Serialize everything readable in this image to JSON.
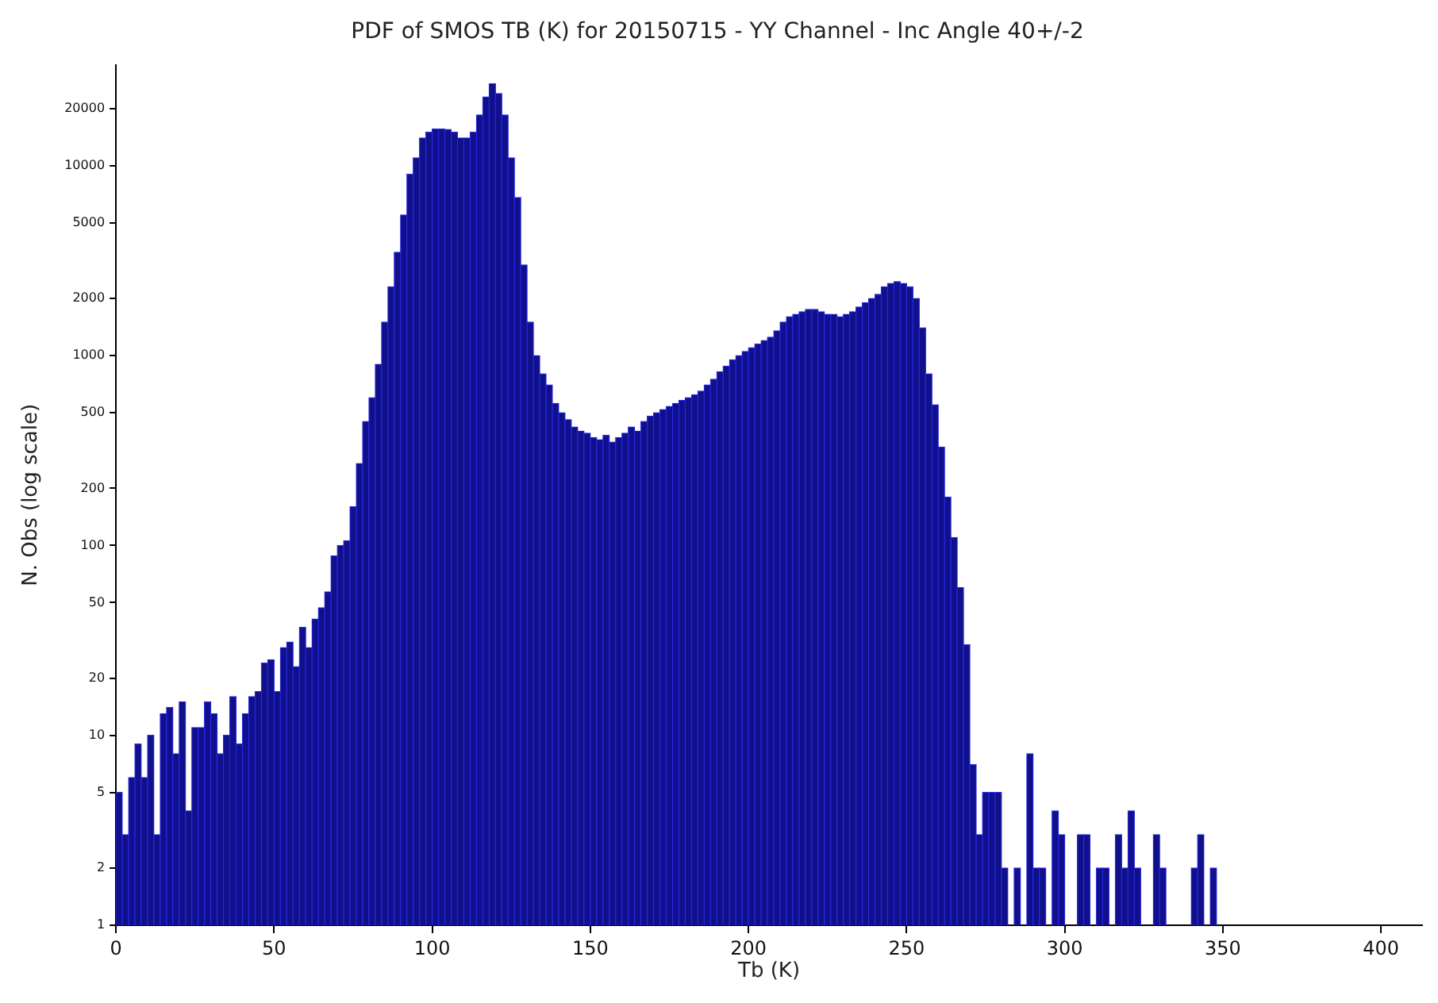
{
  "chart_data": {
    "type": "histogram",
    "title": "PDF of SMOS TB (K) for 20150715 - YY Channel - Inc Angle 40+/-2",
    "xlabel": "Tb (K)",
    "ylabel": "N. Obs (log scale)",
    "color": "#10108c",
    "bins": [
      0,
      2,
      4,
      6,
      8,
      10,
      12,
      14,
      16,
      18,
      20,
      22,
      24,
      26,
      28,
      30,
      32,
      34,
      36,
      38,
      40,
      42,
      44,
      46,
      48,
      50,
      52,
      54,
      56,
      58,
      60,
      62,
      64,
      66,
      68,
      70,
      72,
      74,
      76,
      78,
      80,
      82,
      84,
      86,
      88,
      90,
      92,
      94,
      96,
      98,
      100,
      102,
      104,
      106,
      108,
      110,
      112,
      114,
      116,
      118,
      120,
      122,
      124,
      126,
      128,
      130,
      132,
      134,
      136,
      138,
      140,
      142,
      144,
      146,
      148,
      150,
      152,
      154,
      156,
      158,
      160,
      162,
      164,
      166,
      168,
      170,
      172,
      174,
      176,
      178,
      180,
      182,
      184,
      186,
      188,
      190,
      192,
      194,
      196,
      198,
      200,
      202,
      204,
      206,
      208,
      210,
      212,
      214,
      216,
      218,
      220,
      222,
      224,
      226,
      228,
      230,
      232,
      234,
      236,
      238,
      240,
      242,
      244,
      246,
      248,
      250,
      252,
      254,
      256,
      258,
      260,
      262,
      264,
      266,
      268,
      270,
      272,
      274,
      276,
      278,
      280,
      282,
      284,
      286,
      288,
      290,
      292,
      294,
      296,
      298,
      300,
      302,
      304,
      306,
      308,
      310,
      312,
      314,
      316,
      318,
      320,
      322,
      324,
      326,
      328,
      330,
      332,
      334,
      336,
      338,
      340,
      342,
      344,
      346,
      348
    ],
    "values": [
      5,
      3,
      6,
      9,
      6,
      10,
      3,
      13,
      14,
      8,
      15,
      4,
      11,
      11,
      15,
      13,
      8,
      10,
      16,
      9,
      13,
      16,
      17,
      24,
      25,
      17,
      29,
      31,
      23,
      37,
      29,
      41,
      47,
      57,
      88,
      100,
      106,
      160,
      270,
      450,
      600,
      900,
      1500,
      2300,
      3500,
      5500,
      9000,
      11000,
      14000,
      15000,
      15600,
      15600,
      15500,
      15000,
      14000,
      14000,
      15000,
      18500,
      23000,
      27000,
      24000,
      18500,
      11000,
      6800,
      3000,
      1500,
      1000,
      800,
      700,
      560,
      500,
      460,
      420,
      400,
      390,
      370,
      360,
      380,
      350,
      370,
      390,
      420,
      400,
      450,
      480,
      500,
      520,
      540,
      560,
      580,
      600,
      620,
      650,
      700,
      750,
      820,
      880,
      950,
      1000,
      1050,
      1100,
      1150,
      1200,
      1250,
      1350,
      1500,
      1600,
      1650,
      1700,
      1750,
      1750,
      1700,
      1650,
      1650,
      1600,
      1650,
      1700,
      1800,
      1900,
      2000,
      2100,
      2300,
      2400,
      2450,
      2400,
      2300,
      2000,
      1400,
      800,
      550,
      330,
      180,
      110,
      60,
      30,
      7,
      3,
      5,
      5,
      5,
      2,
      null,
      2,
      null,
      8,
      2,
      2,
      null,
      4,
      3,
      null,
      null,
      3,
      3,
      null,
      2,
      2,
      null,
      3,
      2,
      4,
      2,
      null,
      null,
      3,
      2,
      null,
      null,
      null,
      null,
      2,
      3,
      null,
      2
    ],
    "xlim": [
      0,
      413
    ],
    "xticks": [
      0,
      50,
      100,
      150,
      200,
      250,
      300,
      350,
      400
    ],
    "ylim": [
      1,
      34000
    ],
    "yticks": [
      1,
      2,
      5,
      10,
      20,
      50,
      100,
      200,
      500,
      1000,
      2000,
      5000,
      10000,
      20000
    ],
    "log": true,
    "grid": false,
    "legend": false
  }
}
